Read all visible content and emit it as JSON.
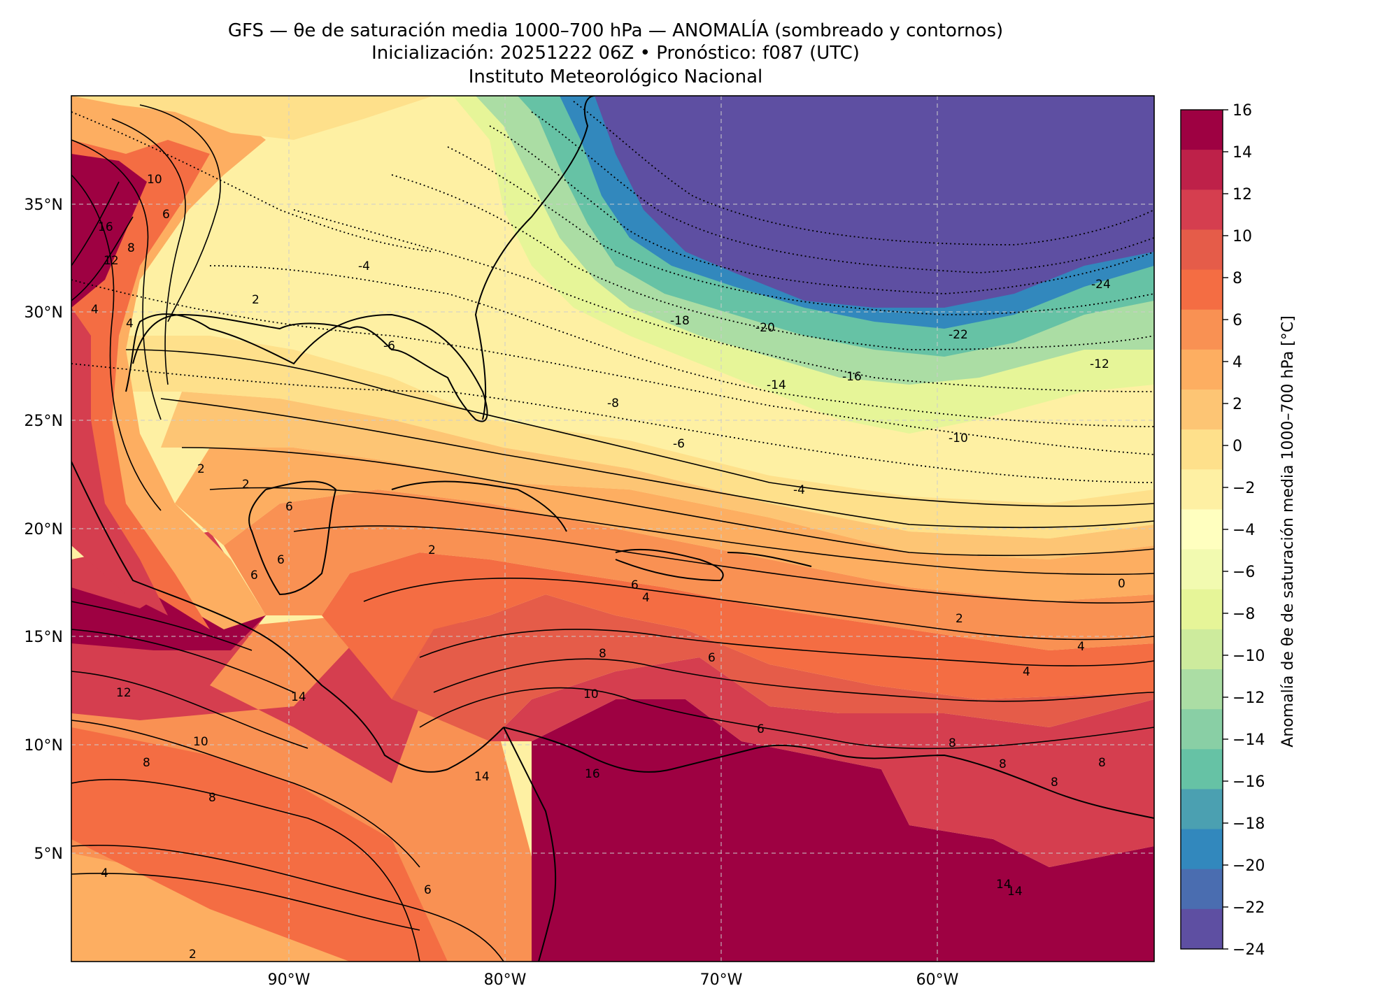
{
  "title": {
    "line1": "GFS — θe de saturación media 1000–700 hPa — ANOMALÍA (sombreado y contornos)",
    "line2": "Inicialización: 20251222 06Z   •   Pronóstico: f087 (UTC)",
    "line3": "Instituto Meteorológico Nacional"
  },
  "map": {
    "lat_ticks": [
      "35°N",
      "30°N",
      "25°N",
      "20°N",
      "15°N",
      "10°N",
      "5°N"
    ],
    "lon_ticks": [
      "90°W",
      "80°W",
      "70°W",
      "60°W"
    ],
    "contour_labels": [
      "10",
      "6",
      "16",
      "8",
      "12",
      "4",
      "4",
      "2",
      "-4",
      "-6",
      "-8",
      "-6",
      "-4",
      "-18",
      "-20",
      "-24",
      "-22",
      "-12",
      "-14",
      "-16",
      "-10",
      "2",
      "2",
      "6",
      "6",
      "6",
      "2",
      "6",
      "4",
      "0",
      "2",
      "4",
      "4",
      "8",
      "6",
      "14",
      "12",
      "10",
      "8",
      "8",
      "14",
      "10",
      "16",
      "6",
      "8",
      "8",
      "8",
      "8",
      "4",
      "6",
      "2",
      "14",
      "14"
    ]
  },
  "colorbar": {
    "label": "Anomalía de θe de saturación media 1000–700 hPa [°C]",
    "ticks": [
      "16",
      "14",
      "12",
      "10",
      "8",
      "6",
      "4",
      "2",
      "0",
      "−2",
      "−4",
      "−6",
      "−8",
      "−10",
      "−12",
      "−14",
      "−16",
      "−18",
      "−20",
      "−22",
      "−24"
    ],
    "colors": [
      "#9e0142",
      "#be2149",
      "#d53e4f",
      "#e55c49",
      "#f46d43",
      "#f99153",
      "#fdae61",
      "#fdc574",
      "#fee08b",
      "#fef0a3",
      "#ffffbf",
      "#f2fab0",
      "#e6f598",
      "#cdeb9d",
      "#abdda4",
      "#89cfa5",
      "#66c2a5",
      "#4ba0b1",
      "#3288bd",
      "#4a6db0",
      "#5e4fa2"
    ]
  }
}
